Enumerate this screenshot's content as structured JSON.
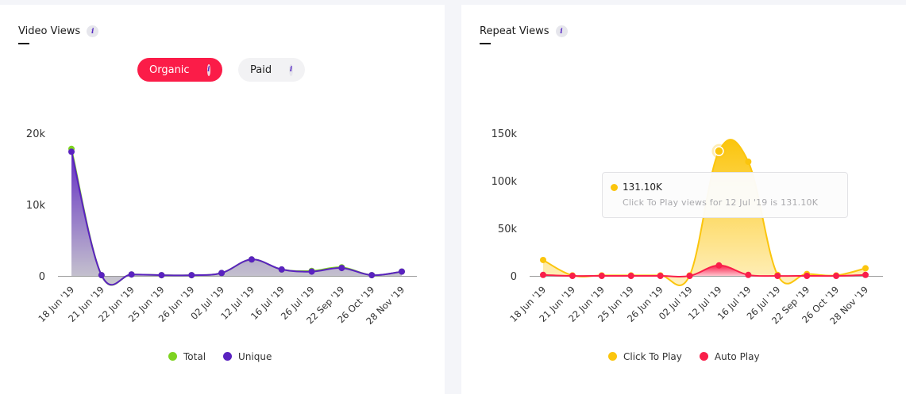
{
  "left": {
    "title": "Video Views",
    "toggles": {
      "organic": "Organic",
      "paid": "Paid",
      "active": "organic"
    },
    "info_icon": "i"
  },
  "right": {
    "title": "Repeat Views",
    "info_icon": "i",
    "tooltip": {
      "value": "131.10K",
      "detail": "Click To Play views for 12 Jul '19 is 131.10K"
    }
  },
  "chart_data": [
    {
      "type": "area",
      "title": "Video Views",
      "categories": [
        "18 Jun '19",
        "21 Jun '19",
        "22 Jun '19",
        "25 Jun '19",
        "26 Jun '19",
        "02 Jul '19",
        "12 Jul '19",
        "16 Jul '19",
        "26 Jul '19",
        "22 Sep '19",
        "26 Oct '19",
        "28 Nov '19"
      ],
      "y_ticks": [
        "0",
        "10k",
        "20k"
      ],
      "ylim": [
        0,
        20000
      ],
      "legend_position": "bottom",
      "series": [
        {
          "name": "Total",
          "color": "#7ed321",
          "values": [
            17800,
            100,
            200,
            100,
            100,
            400,
            2300,
            900,
            700,
            1200,
            100,
            600
          ]
        },
        {
          "name": "Unique",
          "color": "#5a22c0",
          "values": [
            17400,
            100,
            200,
            100,
            100,
            400,
            2300,
            900,
            600,
            1100,
            100,
            600
          ]
        }
      ]
    },
    {
      "type": "area",
      "title": "Repeat Views",
      "categories": [
        "18 Jun '19",
        "21 Jun '19",
        "22 Jun '19",
        "25 Jun '19",
        "26 Jun '19",
        "02 Jul '19",
        "12 Jul '19",
        "16 Jul '19",
        "26 Jul '19",
        "22 Sep '19",
        "26 Oct '19",
        "28 Nov '19"
      ],
      "y_ticks": [
        "0",
        "50k",
        "100k",
        "150k"
      ],
      "ylim": [
        0,
        150000
      ],
      "legend_position": "bottom",
      "highlight": {
        "series": "Click To Play",
        "category": "12 Jul '19"
      },
      "series": [
        {
          "name": "Click To Play",
          "color": "#fbc50d",
          "values": [
            16700,
            500,
            500,
            500,
            500,
            500,
            131100,
            120000,
            1000,
            2000,
            500,
            8000
          ]
        },
        {
          "name": "Auto Play",
          "color": "#f91f4a",
          "values": [
            1000,
            0,
            0,
            0,
            0,
            0,
            11000,
            1000,
            0,
            0,
            0,
            1000
          ]
        }
      ]
    }
  ]
}
